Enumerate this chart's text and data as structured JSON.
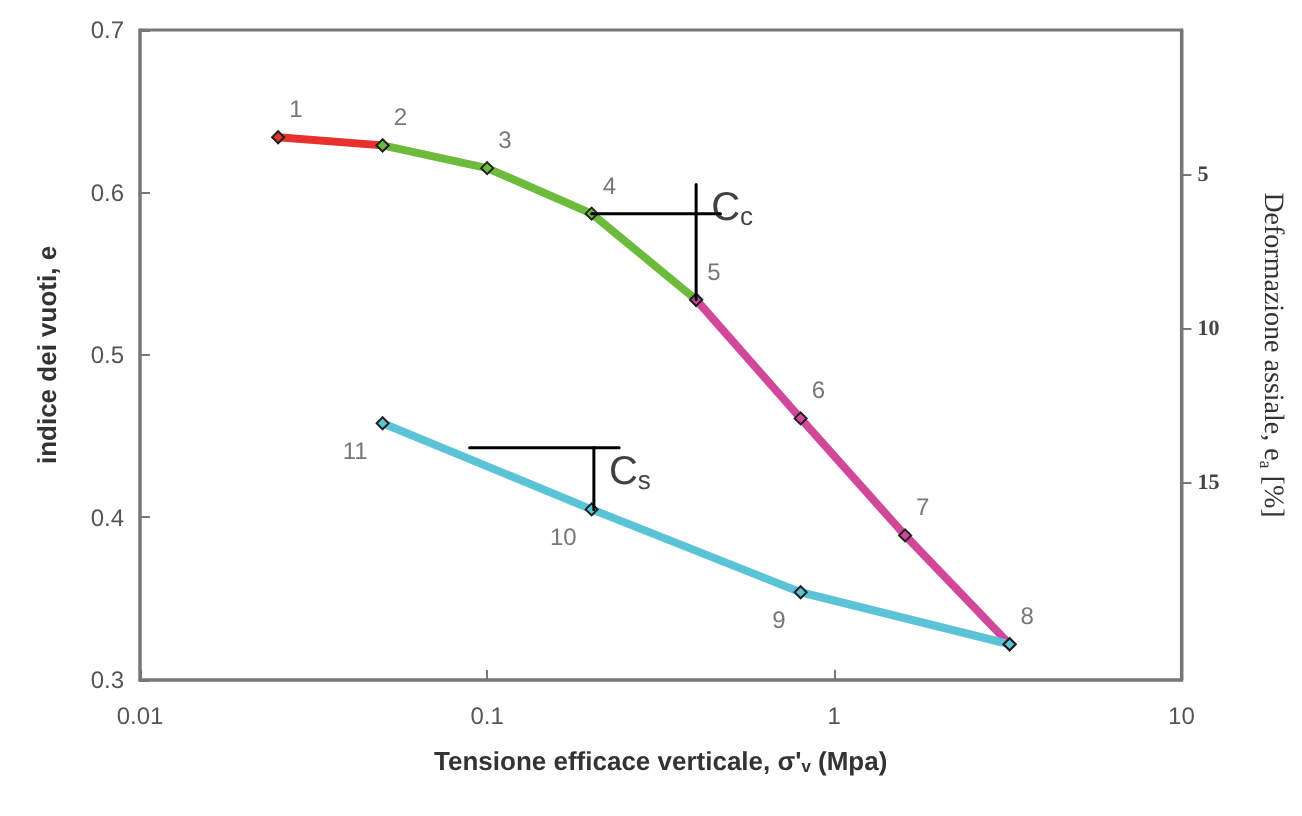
{
  "chart_data": {
    "type": "line",
    "xlabel": "Tensione efficace verticale, σ'$_{v}$ (Mpa)",
    "ylabel": "indice dei vuoti, e",
    "y2label": "Deformazione assiale, e$_{a}$ [%]",
    "log": "x",
    "xlim": [
      0.01,
      10
    ],
    "xticks": [
      0.01,
      0.1,
      1,
      10
    ],
    "ylim": [
      0.3,
      0.7
    ],
    "yticks": [
      0.3,
      0.4,
      0.5,
      0.6,
      0.7
    ],
    "y2lim": [
      21.4,
      0.3
    ],
    "y2ticks": [
      5,
      10,
      15
    ],
    "marker": "diamond",
    "line_style": "solid",
    "series": [
      {
        "color": "#e8312d",
        "x": [
          0.025,
          0.05
        ],
        "values": [
          0.634,
          0.629
        ]
      },
      {
        "color": "#6cbb3c",
        "x": [
          0.05,
          0.1,
          0.2,
          0.4
        ],
        "values": [
          0.629,
          0.615,
          0.587,
          0.534
        ]
      },
      {
        "color": "#d1489a",
        "x": [
          0.4,
          0.8,
          1.6,
          3.2
        ],
        "values": [
          0.534,
          0.461,
          0.389,
          0.322
        ]
      },
      {
        "color": "#5bc3d6",
        "x": [
          3.2,
          0.8,
          0.2,
          0.05
        ],
        "values": [
          0.322,
          0.354,
          0.405,
          0.458
        ]
      },
      {
        "color": "#000000",
        "marker": "none",
        "x": [
          0.2,
          0.47
        ],
        "values": [
          0.587,
          0.587
        ]
      },
      {
        "color": "#000000",
        "marker": "none",
        "x": [
          0.4,
          0.4
        ],
        "values": [
          0.605,
          0.534
        ]
      },
      {
        "color": "#000000",
        "marker": "none",
        "x": [
          0.089,
          0.24
        ],
        "values": [
          0.443,
          0.443
        ]
      },
      {
        "color": "#000000",
        "marker": "none",
        "x": [
          0.203,
          0.203
        ],
        "values": [
          0.443,
          0.405
        ]
      }
    ],
    "annotations": [
      {
        "text": "1",
        "x": 0.025,
        "y": 0.634
      },
      {
        "text": "2",
        "x": 0.05,
        "y": 0.629
      },
      {
        "text": "3",
        "x": 0.1,
        "y": 0.615
      },
      {
        "text": "4",
        "x": 0.2,
        "y": 0.587
      },
      {
        "text": "5",
        "x": 0.4,
        "y": 0.534
      },
      {
        "text": "6",
        "x": 0.8,
        "y": 0.461
      },
      {
        "text": "7",
        "x": 1.6,
        "y": 0.389
      },
      {
        "text": "8",
        "x": 3.2,
        "y": 0.322
      },
      {
        "text": "9",
        "x": 0.8,
        "y": 0.354
      },
      {
        "text": "10",
        "x": 0.2,
        "y": 0.405
      },
      {
        "text": "11",
        "x": 0.05,
        "y": 0.458
      },
      {
        "text": "C$_{c}$",
        "x": 0.4,
        "y": 0.605
      },
      {
        "text": "C$_{s}$",
        "x": 0.203,
        "y": 0.443
      }
    ]
  }
}
